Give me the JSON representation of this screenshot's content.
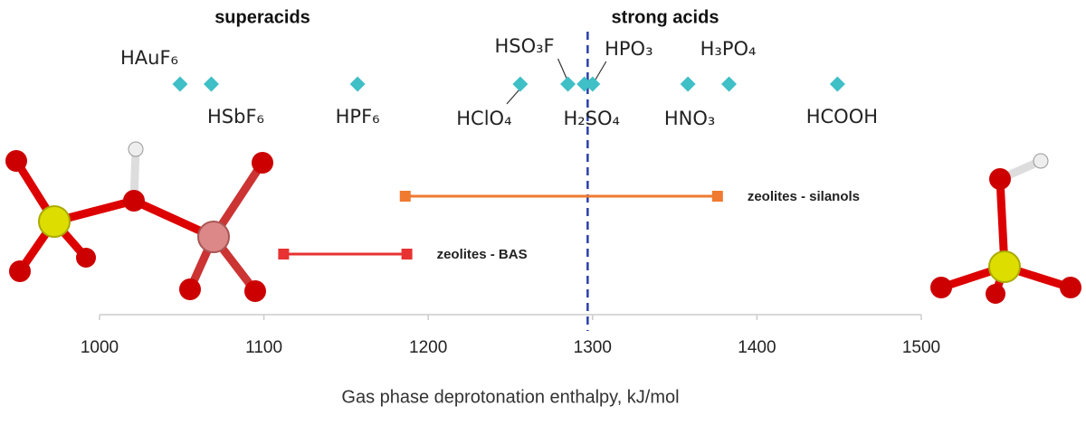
{
  "chart_data": {
    "type": "scatter",
    "annotations": [
      "superacids",
      "strong acids"
    ],
    "x_label": "Gas phase deprotonation enthalpy, kJ/mol",
    "labels": [
      "HAuF₆",
      "HSbF₆",
      "HPF₆",
      "HClO₄",
      "HSO₃F",
      "H₂SO₄",
      "HPO₃",
      "HNO₃",
      "H₃PO₄",
      "HCOOH"
    ],
    "x": [
      1049,
      1068,
      1157,
      1256,
      1285,
      1295,
      1300,
      1358,
      1383,
      1449
    ],
    "color": "#3fbfc6",
    "ranges": [
      {
        "name": "zeolites - silanols",
        "color": "#f07a30",
        "values": [
          1186,
          1376
        ]
      },
      {
        "name": "zeolites - BAS",
        "color": "#e83232",
        "values": [
          1112,
          1187
        ]
      }
    ],
    "threshold": 1297,
    "threshold_color": "#2a3fa8",
    "xlim": [
      1000,
      1500
    ],
    "xticks": [
      1000,
      1100,
      1200,
      1300,
      1400,
      1500
    ]
  }
}
